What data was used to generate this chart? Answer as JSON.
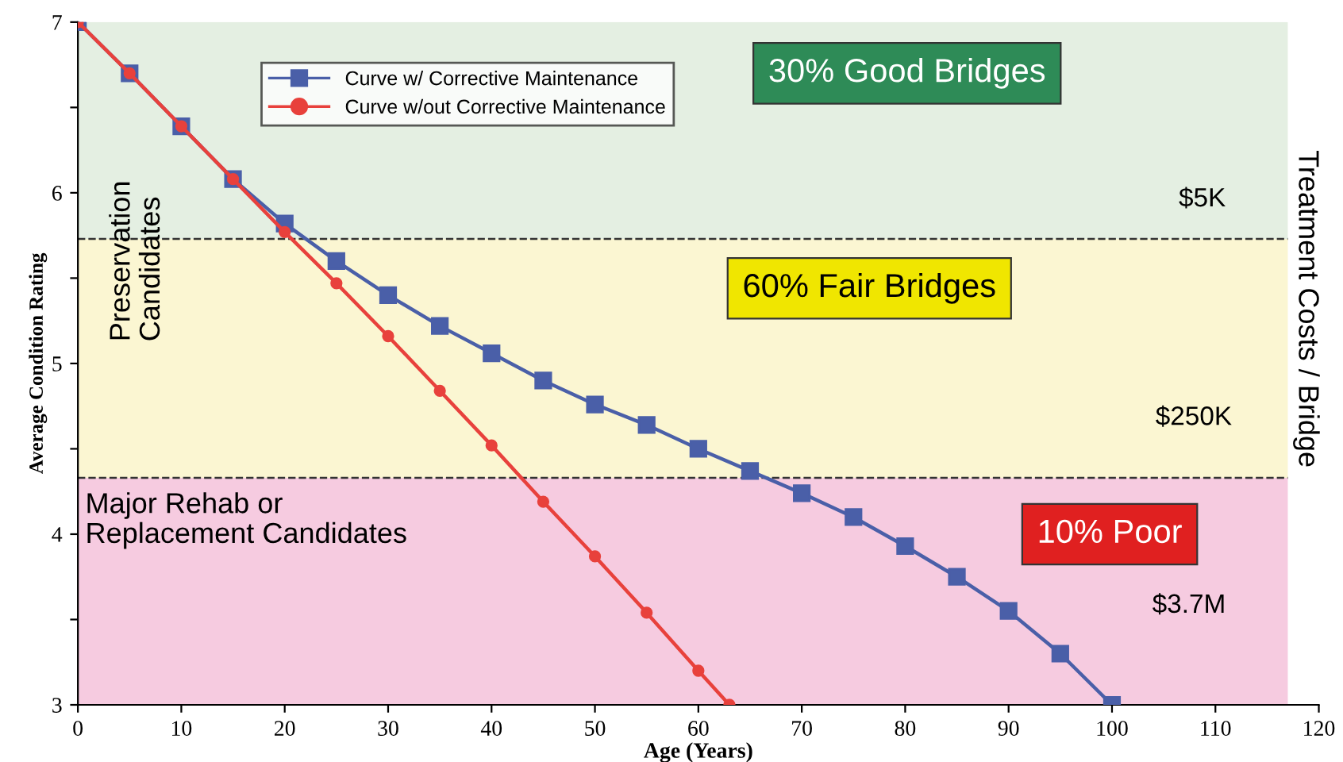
{
  "chart_data": {
    "type": "line",
    "xlabel": "Age (Years)",
    "ylabel": "Average Condition Rating",
    "x": [
      0,
      5,
      10,
      15,
      20,
      25,
      30,
      35,
      40,
      45,
      50,
      55,
      60,
      65,
      70,
      75,
      80,
      85,
      90,
      95,
      100
    ],
    "series": [
      {
        "name": "Curve w/ Corrective Maintenance",
        "color": "#4a5fa8",
        "marker": "square",
        "values": [
          7.0,
          6.7,
          6.39,
          6.08,
          5.82,
          5.6,
          5.4,
          5.22,
          5.06,
          4.9,
          4.76,
          4.64,
          4.5,
          4.37,
          4.24,
          4.1,
          3.93,
          3.75,
          3.55,
          3.3,
          3.0
        ]
      },
      {
        "name": "Curve w/out Corrective Maintenance",
        "color": "#e8413c",
        "marker": "circle",
        "x": [
          0,
          5,
          10,
          15,
          20,
          25,
          30,
          35,
          40,
          45,
          50,
          55,
          60,
          63
        ],
        "values": [
          7.0,
          6.7,
          6.39,
          6.08,
          5.77,
          5.47,
          5.16,
          4.84,
          4.52,
          4.19,
          3.87,
          3.54,
          3.2,
          3.0
        ]
      }
    ],
    "xlim": [
      0,
      120
    ],
    "xticks": [
      0,
      10,
      20,
      30,
      40,
      50,
      60,
      70,
      80,
      90,
      100,
      110,
      120
    ],
    "ylim": [
      3,
      7
    ],
    "yticks": [
      3,
      {
        "value": 3.5,
        "label": null
      },
      4,
      {
        "value": 4.5,
        "label": null
      },
      5,
      {
        "value": 5.5,
        "label": null
      },
      6,
      {
        "value": 6.5,
        "label": null
      },
      7
    ],
    "bands": [
      {
        "axis": "y",
        "from": 5.73,
        "to": 7,
        "color": "#e4efe2",
        "label": "30% Good Bridges"
      },
      {
        "axis": "y",
        "from": 4.33,
        "to": 5.73,
        "color": "#fbf6d2",
        "label": "60% Fair Bridges"
      },
      {
        "axis": "y",
        "from": 3,
        "to": 4.33,
        "color": "#f6cbe0",
        "label": "10% Poor"
      }
    ],
    "ref_lines": [
      {
        "axis": "y",
        "value": 5.73,
        "line_style": "dashed"
      },
      {
        "axis": "y",
        "value": 4.33,
        "line_style": "dashed"
      }
    ],
    "annotations": [
      "Preservation\nCandidates",
      "Major Rehab or\nReplacement Candidates",
      "$5K",
      "$250K",
      "$3.7M",
      "Treatment Costs / Bridge"
    ],
    "legend": "top left",
    "grid": false,
    "line_style": "solid"
  }
}
